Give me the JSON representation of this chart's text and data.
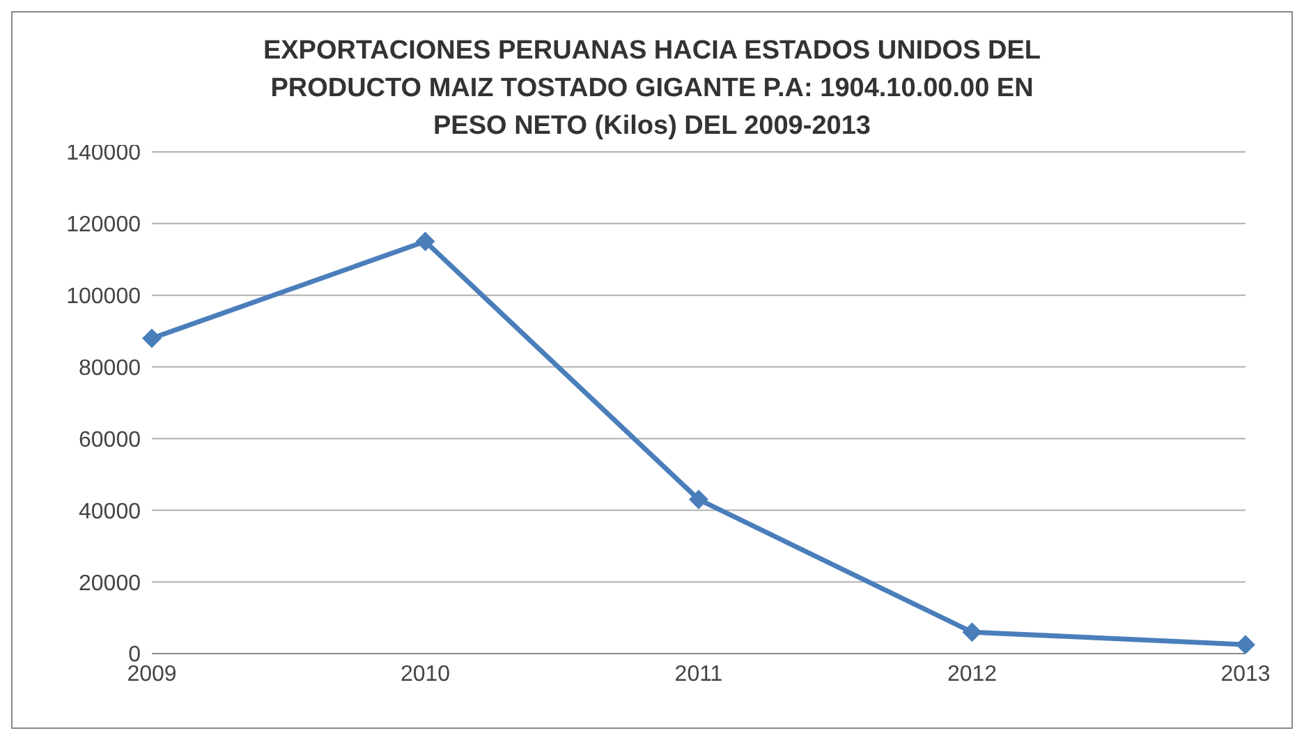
{
  "chart_data": {
    "type": "line",
    "title": "EXPORTACIONES PERUANAS HACIA ESTADOS UNIDOS DEL PRODUCTO MAIZ TOSTADO GIGANTE P.A: 1904.10.00.00 EN PESO NETO (Kilos) DEL 2009-2013",
    "categories": [
      "2009",
      "2010",
      "2011",
      "2012",
      "2013"
    ],
    "series": [
      {
        "color": "#4a7ebb",
        "values": [
          88000,
          115000,
          43000,
          6000,
          2500
        ]
      }
    ],
    "ylim": [
      0,
      140000
    ],
    "yticks": [
      0,
      20000,
      40000,
      60000,
      80000,
      100000,
      120000,
      140000
    ],
    "grid": "y",
    "legend": false,
    "marker": "diamond",
    "line_style": "solid"
  }
}
